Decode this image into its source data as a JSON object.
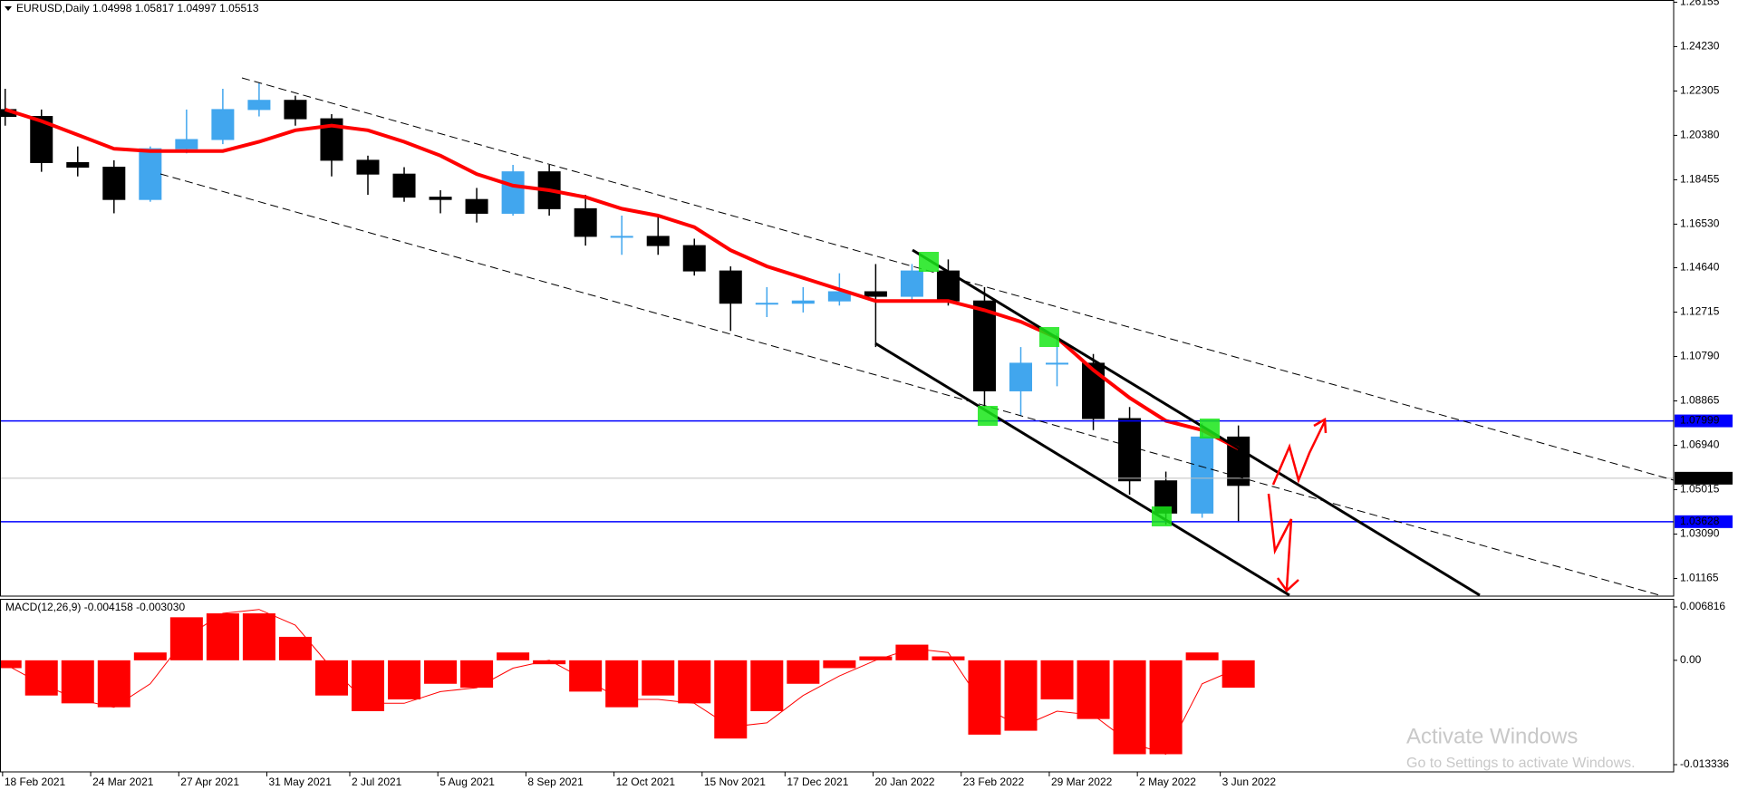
{
  "chart_data": [
    {
      "type": "candlestick",
      "title": "EURUSD,Daily  1.04998 1.05817 1.04997 1.05513",
      "x": [
        "19 Feb 2021",
        "5 Mar 2021",
        "19 Mar 2021",
        "2 Apr 2021",
        "16 Apr 2021",
        "30 Apr 2021",
        "14 May 2021",
        "28 May 2021",
        "11 Jun 2021",
        "25 Jun 2021",
        "9 Jul 2021",
        "23 Jul 2021",
        "6 Aug 2021",
        "20 Aug 2021",
        "3 Sep 2021",
        "17 Sep 2021",
        "1 Oct 2021",
        "15 Oct 2021",
        "29 Oct 2021",
        "12 Nov 2021",
        "26 Nov 2021",
        "10 Dec 2021",
        "24 Dec 2021",
        "7 Jan 2022",
        "21 Jan 2022",
        "4 Feb 2022",
        "18 Feb 2022",
        "4 Mar 2022",
        "18 Mar 2022",
        "1 Apr 2022",
        "15 Apr 2022",
        "29 Apr 2022",
        "13 May 2022",
        "27 May 2022",
        "10 Jun 2022"
      ],
      "open": [
        1.215,
        1.212,
        1.192,
        1.19,
        1.176,
        1.198,
        1.202,
        1.215,
        1.219,
        1.211,
        1.193,
        1.187,
        1.177,
        1.176,
        1.17,
        1.188,
        1.172,
        1.16,
        1.16,
        1.156,
        1.145,
        1.131,
        1.131,
        1.132,
        1.136,
        1.134,
        1.145,
        1.132,
        1.093,
        1.105,
        1.105,
        1.081,
        1.054,
        1.04,
        1.073
      ],
      "high": [
        1.224,
        1.215,
        1.199,
        1.193,
        1.199,
        1.215,
        1.224,
        1.2265,
        1.221,
        1.213,
        1.195,
        1.19,
        1.18,
        1.181,
        1.191,
        1.191,
        1.178,
        1.169,
        1.169,
        1.159,
        1.147,
        1.138,
        1.138,
        1.144,
        1.148,
        1.148,
        1.15,
        1.138,
        1.112,
        1.118,
        1.109,
        1.086,
        1.058,
        1.079,
        1.078
      ],
      "low": [
        1.208,
        1.188,
        1.186,
        1.17,
        1.175,
        1.196,
        1.2,
        1.212,
        1.208,
        1.186,
        1.178,
        1.175,
        1.17,
        1.166,
        1.169,
        1.169,
        1.156,
        1.152,
        1.152,
        1.143,
        1.119,
        1.125,
        1.127,
        1.13,
        1.112,
        1.132,
        1.13,
        1.086,
        1.082,
        1.095,
        1.076,
        1.048,
        1.035,
        1.038,
        1.036
      ],
      "close": [
        1.212,
        1.192,
        1.19,
        1.176,
        1.198,
        1.202,
        1.215,
        1.219,
        1.211,
        1.193,
        1.187,
        1.177,
        1.176,
        1.17,
        1.188,
        1.172,
        1.16,
        1.16,
        1.156,
        1.145,
        1.131,
        1.131,
        1.132,
        1.136,
        1.134,
        1.145,
        1.132,
        1.093,
        1.105,
        1.105,
        1.081,
        1.054,
        1.04,
        1.073,
        1.052
      ],
      "up_color": "#41a6ee",
      "down_color": "#000000",
      "overlays": [
        {
          "type": "line",
          "color": "#ff0000",
          "values": [
            1.215,
            1.21,
            1.204,
            1.198,
            1.197,
            1.197,
            1.197,
            1.201,
            1.206,
            1.208,
            1.206,
            1.201,
            1.195,
            1.187,
            1.182,
            1.18,
            1.177,
            1.172,
            1.169,
            1.164,
            1.154,
            1.147,
            1.142,
            1.137,
            1.132,
            1.132,
            1.132,
            1.128,
            1.123,
            1.116,
            1.102,
            1.09,
            1.08,
            1.076,
            1.068
          ]
        }
      ],
      "levels": [
        {
          "value": 1.07999,
          "color": "#0000ff"
        },
        {
          "value": 1.03628,
          "color": "#0000ff"
        },
        {
          "value": 1.05513,
          "color": "#c0c0c0",
          "label_color": "#000000"
        }
      ],
      "xlim": [
        "17 Feb 2021",
        "25 Nov 2022"
      ],
      "xticks": [
        "18 Feb 2021",
        "24 Mar 2021",
        "27 Apr 2021",
        "31 May 2021",
        "2 Jul 2021",
        "5 Aug 2021",
        "8 Sep 2021",
        "12 Oct 2021",
        "15 Nov 2021",
        "17 Dec 2021",
        "20 Jan 2022",
        "23 Feb 2022",
        "29 Mar 2022",
        "2 May 2022",
        "3 Jun 2022"
      ],
      "ylim": [
        1.004,
        1.2625
      ],
      "yticks": [
        1.26155,
        {
          "value": 1.2423,
          "label": "1.24230"
        },
        1.22305,
        {
          "value": 1.2038,
          "label": "1.20380"
        },
        1.18455,
        {
          "value": 1.1653,
          "label": "1.16530"
        },
        {
          "value": 1.1464,
          "label": "1.14640"
        },
        1.12715,
        {
          "value": 1.1079,
          "label": "1.10790"
        },
        1.08865,
        {
          "value": 1.0694,
          "label": "1.06940"
        },
        1.05015,
        {
          "value": 1.0309,
          "label": "1.03090"
        },
        1.01165
      ]
    },
    {
      "type": "macd",
      "title": "MACD(12,26,9) -0.004158 -0.003030",
      "series": [
        {
          "type": "bar",
          "color": "#ff0000",
          "values": [
            -0.001,
            -0.0045,
            -0.0055,
            -0.006,
            0.001,
            0.0055,
            0.006,
            0.006,
            0.003,
            -0.0045,
            -0.0065,
            -0.005,
            -0.003,
            -0.0035,
            0.001,
            -0.0005,
            -0.004,
            -0.006,
            -0.0045,
            -0.0055,
            -0.01,
            -0.0065,
            -0.003,
            -0.001,
            0.0005,
            0.002,
            0.0005,
            -0.0095,
            -0.009,
            -0.005,
            -0.0075,
            -0.012,
            -0.012,
            0.001,
            -0.0035
          ]
        },
        {
          "type": "line",
          "color": "#ff0000",
          "values": [
            -0.0005,
            -0.003,
            -0.005,
            -0.006,
            -0.003,
            0.003,
            0.006,
            0.0065,
            0.0045,
            -0.001,
            -0.0055,
            -0.0055,
            -0.004,
            -0.0035,
            -0.001,
            0.0,
            -0.0025,
            -0.005,
            -0.005,
            -0.0055,
            -0.0085,
            -0.008,
            -0.0045,
            -0.002,
            0.0,
            0.0015,
            0.001,
            -0.006,
            -0.0085,
            -0.0065,
            -0.007,
            -0.0105,
            -0.012,
            -0.003,
            -0.001
          ]
        }
      ],
      "ylim": [
        -0.01426,
        0.00774
      ],
      "yticks": [
        0.006816,
        {
          "value": 0,
          "label": "0.00"
        },
        -0.013336
      ]
    }
  ],
  "watermark": {
    "title": "Activate Windows",
    "subtitle": "Go to Settings to activate Windows."
  }
}
